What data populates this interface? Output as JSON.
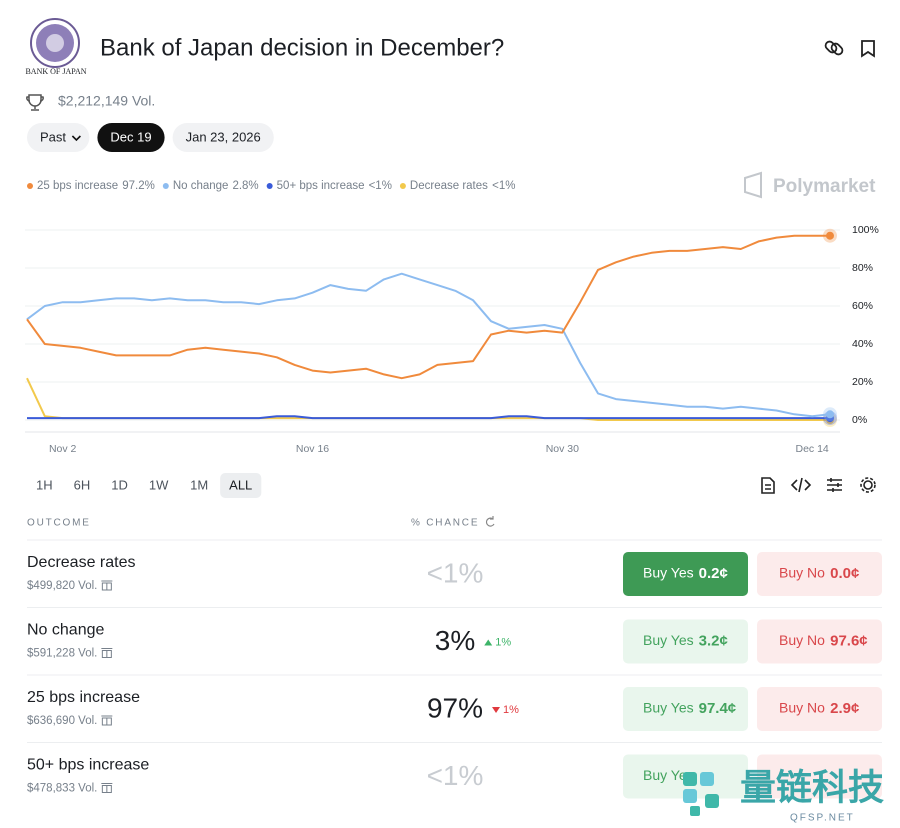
{
  "header": {
    "logo_text": "BANK OF JAPAN",
    "title": "Bank of Japan decision in December?",
    "volume": "$2,212,149 Vol."
  },
  "date_tabs": [
    "Past",
    "Dec 19",
    "Jan 23, 2026"
  ],
  "chart_data": {
    "type": "line",
    "brand": "Polymarket",
    "categories": [
      null,
      null,
      "Nov 2",
      null,
      null,
      null,
      null,
      null,
      null,
      null,
      null,
      null,
      null,
      null,
      null,
      null,
      "Nov 16",
      null,
      null,
      null,
      null,
      null,
      null,
      null,
      null,
      null,
      null,
      null,
      null,
      null,
      "Nov 30",
      null,
      null,
      null,
      null,
      null,
      null,
      null,
      null,
      null,
      null,
      null,
      null,
      null,
      "Dec 14",
      null
    ],
    "series": [
      {
        "name": "25 bps increase",
        "legend_value": "97.2%",
        "color": "#f08a3c",
        "values": [
          53,
          40,
          39,
          38,
          36,
          34,
          34,
          34,
          34,
          37,
          38,
          37,
          36,
          35,
          33,
          29,
          26,
          25,
          26,
          27,
          24,
          22,
          24,
          29,
          30,
          31,
          45,
          47,
          46,
          47,
          46,
          62,
          79,
          83,
          86,
          88,
          89,
          89,
          90,
          91,
          90,
          94,
          96,
          97,
          97,
          97
        ]
      },
      {
        "name": "No change",
        "legend_value": "2.8%",
        "color": "#8dbcf0",
        "values": [
          53,
          60,
          62,
          62,
          63,
          64,
          64,
          63,
          64,
          63,
          63,
          62,
          62,
          61,
          63,
          64,
          67,
          71,
          69,
          68,
          74,
          77,
          74,
          71,
          68,
          63,
          52,
          48,
          49,
          50,
          48,
          30,
          14,
          11,
          10,
          9,
          8,
          7,
          7,
          6,
          7,
          6,
          5,
          3,
          2,
          3
        ]
      },
      {
        "name": "50+ bps increase",
        "legend_value": "<1%",
        "color": "#3a5bd9",
        "values": [
          1,
          1,
          1,
          1,
          1,
          1,
          1,
          1,
          1,
          1,
          1,
          1,
          1,
          1,
          2,
          2,
          1,
          1,
          1,
          1,
          1,
          1,
          1,
          1,
          1,
          1,
          1,
          2,
          2,
          1,
          1,
          1,
          1,
          1,
          1,
          1,
          1,
          1,
          1,
          1,
          1,
          1,
          1,
          1,
          1,
          1
        ]
      },
      {
        "name": "Decrease rates",
        "legend_value": "<1%",
        "color": "#f2c94c",
        "values": [
          22,
          2,
          1,
          1,
          1,
          1,
          1,
          1,
          1,
          1,
          1,
          1,
          1,
          1,
          1,
          1,
          1,
          1,
          1,
          1,
          1,
          1,
          1,
          1,
          1,
          1,
          1,
          1,
          1,
          1,
          1,
          1,
          0,
          0,
          0,
          0,
          0,
          0,
          0,
          0,
          0,
          0,
          0,
          0,
          0,
          0
        ]
      }
    ],
    "ylim": [
      0,
      100
    ],
    "yticks": [
      {
        "value": 0,
        "label": "0%"
      },
      {
        "value": 20,
        "label": "20%"
      },
      {
        "value": 40,
        "label": "40%"
      },
      {
        "value": 60,
        "label": "60%"
      },
      {
        "value": 80,
        "label": "80%"
      },
      {
        "value": 100,
        "label": "100%"
      }
    ],
    "grid": true
  },
  "timeframes": [
    "1H",
    "6H",
    "1D",
    "1W",
    "1M",
    "ALL"
  ],
  "table": {
    "headers": [
      "OUTCOME",
      "% CHANCE"
    ],
    "buy_yes_label": "Buy Yes",
    "buy_no_label": "Buy No",
    "rows": [
      {
        "name": "Decrease rates",
        "volume": "$499,820 Vol.",
        "chance": "<1%",
        "yes_price": "0.2¢",
        "no_price": "0.0¢"
      },
      {
        "name": "No change",
        "volume": "$591,228 Vol.",
        "chance": "3%",
        "change": "1%",
        "change_trend": "up",
        "yes_price": "3.2¢",
        "no_price": "97.6¢"
      },
      {
        "name": "25 bps increase",
        "volume": "$636,690 Vol.",
        "chance": "97%",
        "change": "1%",
        "change_trend": "down",
        "yes_price": "97.4¢",
        "no_price": "2.9¢"
      },
      {
        "name": "50+ bps increase",
        "volume": "$478,833 Vol.",
        "chance": "<1%"
      }
    ]
  },
  "watermark": {
    "name": "量链科技",
    "site": "QFSP.NET"
  }
}
